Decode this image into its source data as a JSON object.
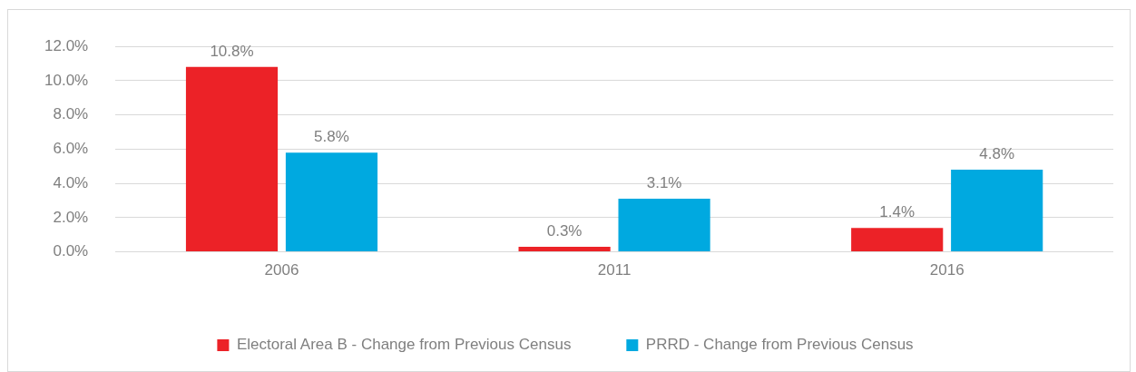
{
  "chart_data": {
    "type": "bar",
    "categories": [
      "2006",
      "2011",
      "2016"
    ],
    "series": [
      {
        "name": "Electoral Area B - Change from Previous Census",
        "color": "#ec2227",
        "values": [
          10.8,
          0.3,
          1.4
        ],
        "value_labels": [
          "10.8%",
          "0.3%",
          "1.4%"
        ]
      },
      {
        "name": "PRRD - Change from Previous Census",
        "color": "#00a9e0",
        "values": [
          5.8,
          3.1,
          4.8
        ],
        "value_labels": [
          "5.8%",
          "3.1%",
          "4.8%"
        ]
      }
    ],
    "ylim": [
      0,
      12
    ],
    "yticks": [
      {
        "value": 0,
        "label": "0.0%"
      },
      {
        "value": 2,
        "label": "2.0%"
      },
      {
        "value": 4,
        "label": "4.0%"
      },
      {
        "value": 6,
        "label": "6.0%"
      },
      {
        "value": 8,
        "label": "8.0%"
      },
      {
        "value": 10,
        "label": "10.0%"
      },
      {
        "value": 12,
        "label": "12.0%"
      }
    ],
    "grid": "y",
    "legend": "bottom"
  }
}
